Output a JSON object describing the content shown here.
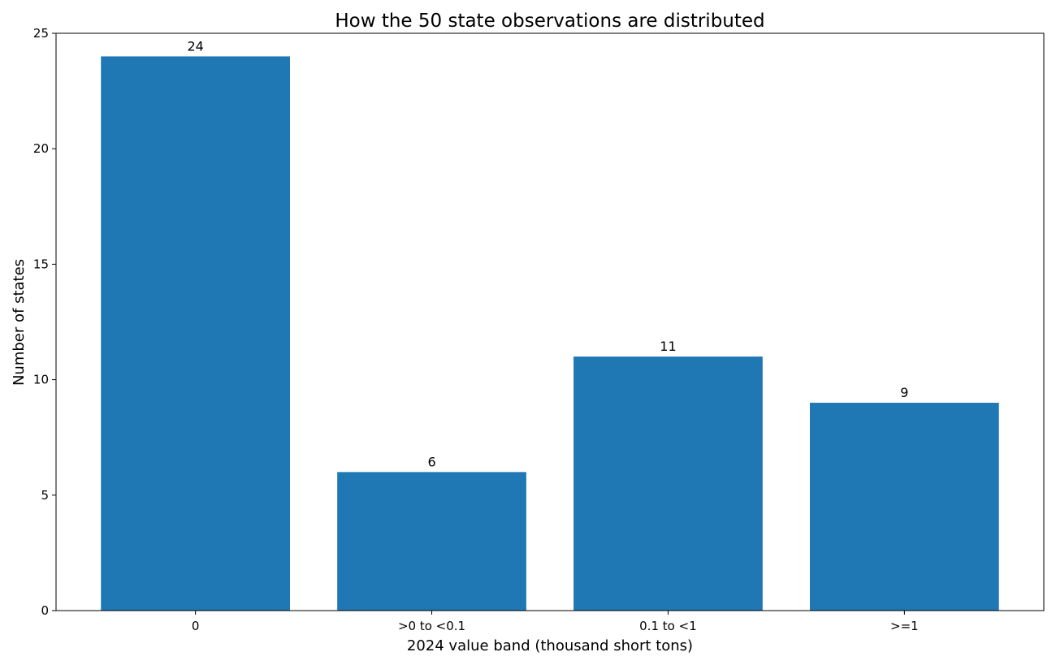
{
  "chart_data": {
    "type": "bar",
    "title": "How the 50 state observations are distributed",
    "xlabel": "2024 value band (thousand short tons)",
    "ylabel": "Number of states",
    "categories": [
      "0",
      ">0 to <0.1",
      "0.1 to <1",
      ">=1"
    ],
    "values": [
      24,
      6,
      11,
      9
    ],
    "data_labels": [
      "24",
      "6",
      "11",
      "9"
    ],
    "ylim": [
      0,
      25
    ],
    "yticks": [
      0,
      5,
      10,
      15,
      20,
      25
    ],
    "bar_color": "#1f77b4",
    "grid": false,
    "legend": "none"
  }
}
